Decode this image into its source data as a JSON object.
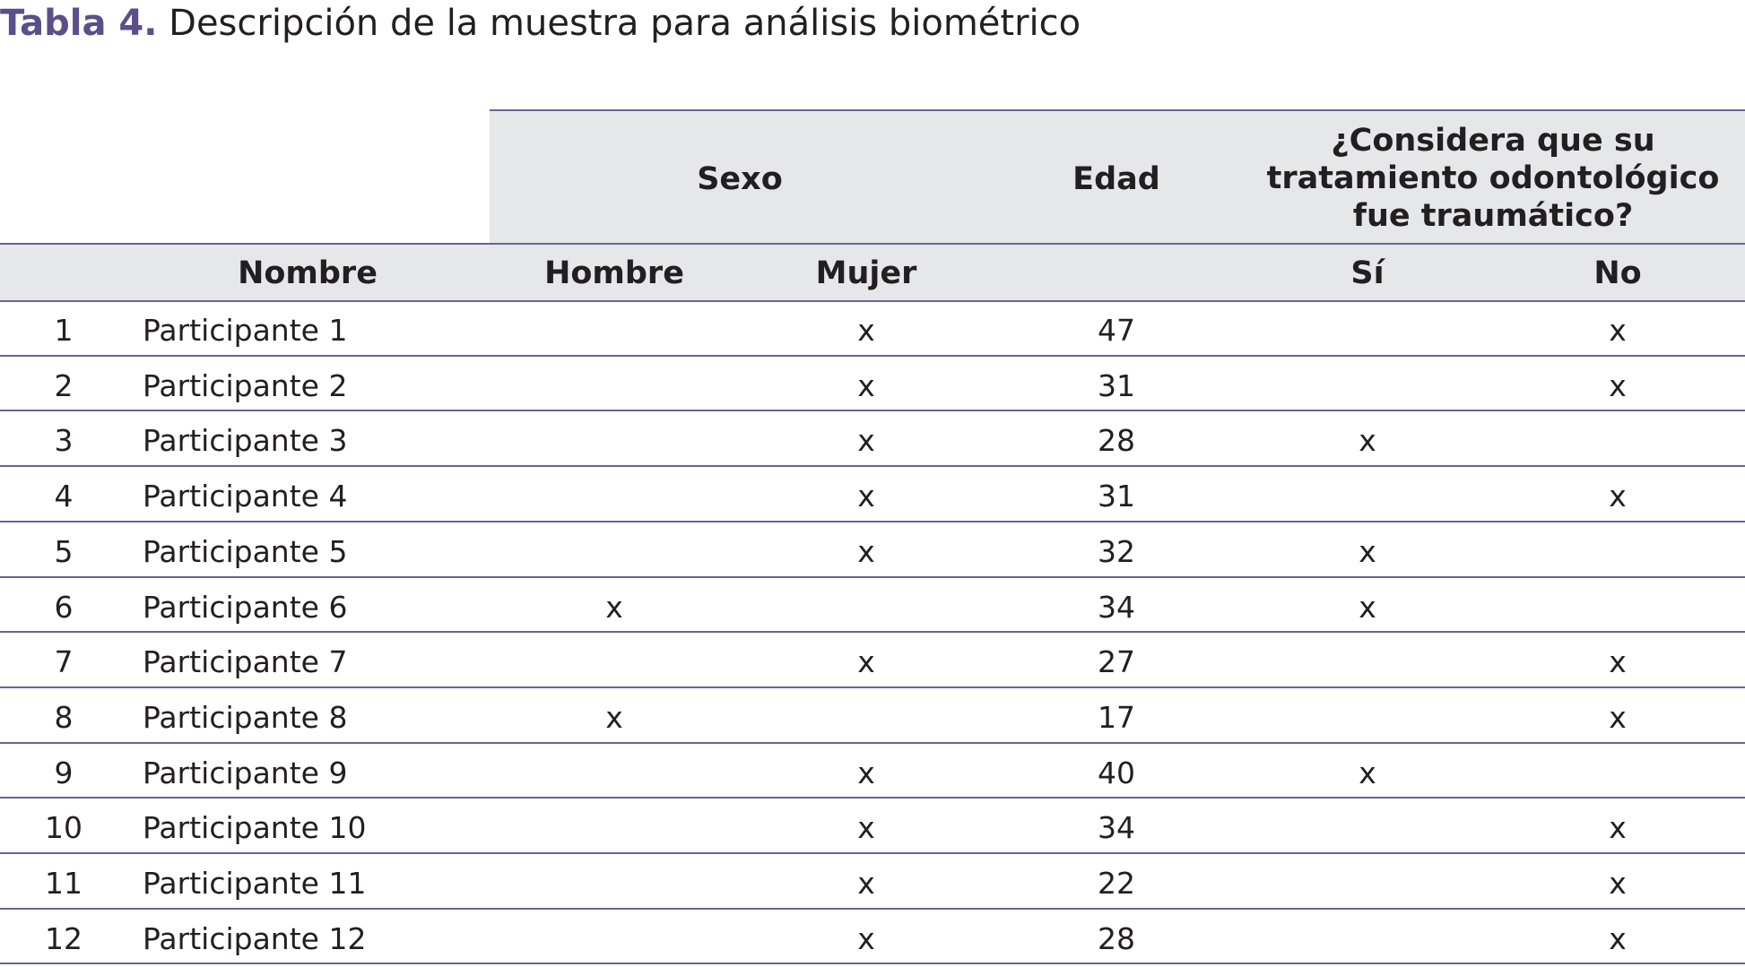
{
  "title": {
    "label": "Tabla 4.",
    "text": "Descripción de la muestra para análisis biométrico"
  },
  "table": {
    "group_headers": {
      "sexo": "Sexo",
      "edad": "Edad",
      "question": [
        "¿Considera que su",
        "tratamiento odontológico",
        "fue traumático?"
      ]
    },
    "column_headers": {
      "nombre": "Nombre",
      "hombre": "Hombre",
      "mujer": "Mujer",
      "si": "Sí",
      "no": "No"
    },
    "rows": [
      {
        "num": 1,
        "name": "Participante 1",
        "mujer": "x",
        "edad": 47,
        "no": "x"
      },
      {
        "num": 2,
        "name": "Participante 2",
        "mujer": "x",
        "edad": 31,
        "no": "x"
      },
      {
        "num": 3,
        "name": "Participante 3",
        "mujer": "x",
        "edad": 28,
        "si": "x"
      },
      {
        "num": 4,
        "name": "Participante 4",
        "mujer": "x",
        "edad": 31,
        "no": "x"
      },
      {
        "num": 5,
        "name": "Participante 5",
        "mujer": "x",
        "edad": 32,
        "si": "x"
      },
      {
        "num": 6,
        "name": "Participante 6",
        "hombre": "x",
        "edad": 34,
        "si": "x"
      },
      {
        "num": 7,
        "name": "Participante 7",
        "mujer": "x",
        "edad": 27,
        "no": "x"
      },
      {
        "num": 8,
        "name": "Participante 8",
        "hombre": "x",
        "edad": 17,
        "no": "x"
      },
      {
        "num": 9,
        "name": "Participante 9",
        "mujer": "x",
        "edad": 40,
        "si": "x"
      },
      {
        "num": 10,
        "name": "Participante 10",
        "mujer": "x",
        "edad": 34,
        "no": "x"
      },
      {
        "num": 11,
        "name": "Participante 11",
        "mujer": "x",
        "edad": 22,
        "no": "x"
      },
      {
        "num": 12,
        "name": "Participante 12",
        "mujer": "x",
        "edad": 28,
        "no": "x"
      }
    ]
  }
}
